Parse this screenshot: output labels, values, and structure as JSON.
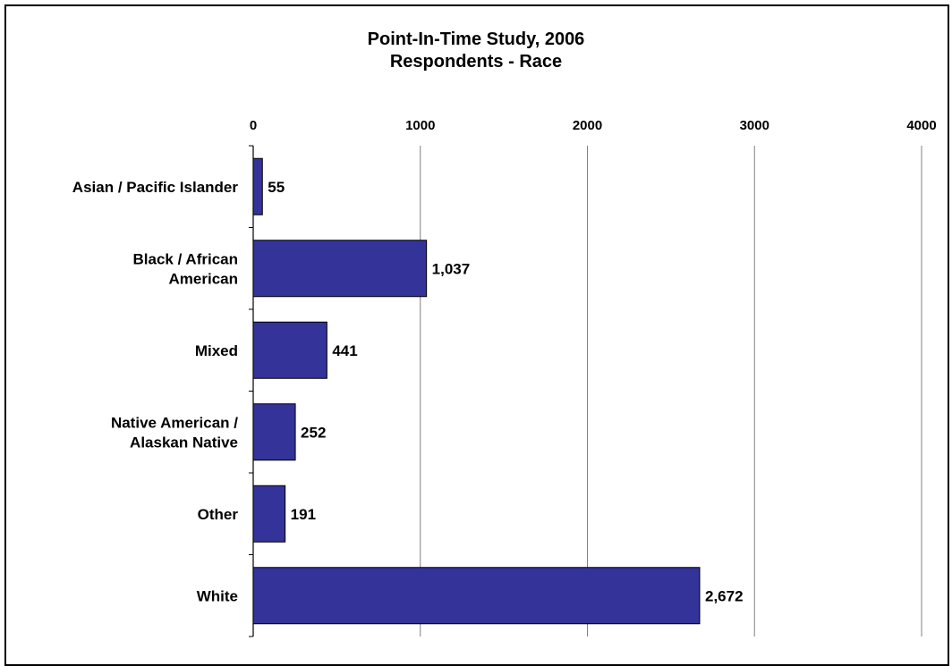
{
  "chart_data": {
    "type": "bar",
    "orientation": "horizontal",
    "title": "Point-In-Time Study, 2006",
    "subtitle": "Respondents - Race",
    "categories": [
      [
        "Asian / Pacific Islander"
      ],
      [
        "Black / African",
        "American"
      ],
      [
        "Mixed"
      ],
      [
        "Native American /",
        "Alaskan Native"
      ],
      [
        "Other"
      ],
      [
        "White"
      ]
    ],
    "values": [
      55,
      1037,
      441,
      252,
      191,
      2672
    ],
    "data_labels": [
      "55",
      "1,037",
      "441",
      "252",
      "191",
      "2,672"
    ],
    "xlim": [
      0,
      4000
    ],
    "xticks": [
      0,
      1000,
      2000,
      3000,
      4000
    ],
    "xtick_labels": [
      "0",
      "1000",
      "2000",
      "3000",
      "4000"
    ],
    "x_axis_position": "top",
    "grid": true,
    "legend": "none",
    "bar_color": "#333399",
    "bar_edge_color": "#000000",
    "grid_color": "#808080"
  }
}
